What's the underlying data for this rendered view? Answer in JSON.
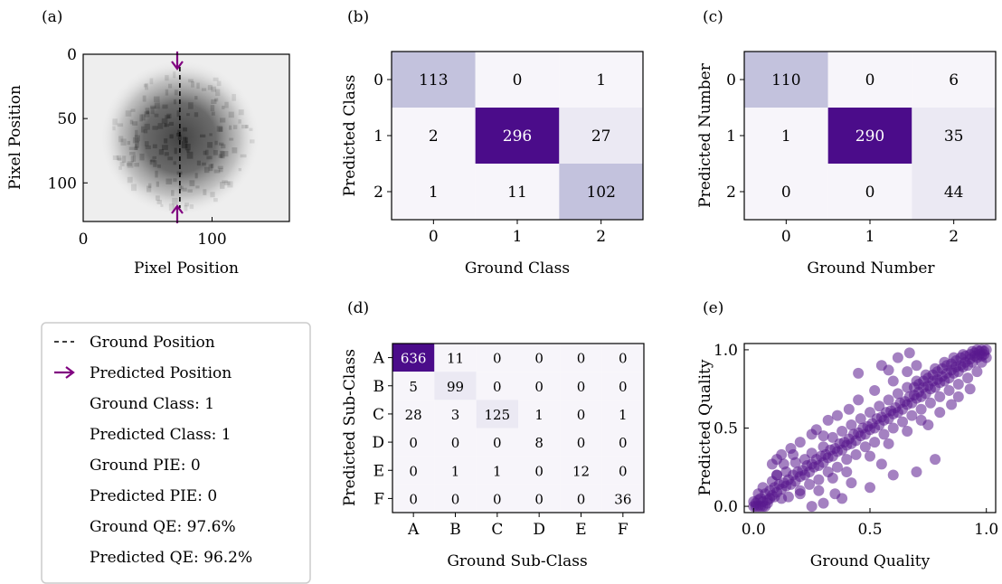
{
  "figure": {
    "panel_labels": [
      "(a)",
      "(b)",
      "(c)",
      "(d)",
      "(e)"
    ]
  },
  "colors": {
    "purple_dark": "#4b0c8a",
    "purple_light": "#c3c2dd",
    "purple_pale": "#ebe9f3",
    "purple_faint": "#f7f5fa",
    "arrow": "#800080",
    "scatter": "#5a1a8e"
  },
  "legend": {
    "ground_position": "Ground Position",
    "predicted_position": "Predicted Position",
    "ground_class": "Ground Class: 1",
    "predicted_class": "Predicted Class: 1",
    "ground_pie": "Ground PIE: 0",
    "predicted_pie": "Predicted PIE: 0",
    "ground_qe": "Ground QE: 97.6%",
    "predicted_qe": "Predicted QE: 96.2%"
  },
  "chart_data": [
    {
      "panel": "(a)",
      "type": "heatmap",
      "xlabel": "Pixel Position",
      "ylabel": "Pixel Position",
      "xticks": [
        "0",
        "100"
      ],
      "yticks": [
        "0",
        "50",
        "100"
      ],
      "xlim": [
        0,
        160
      ],
      "ylim": [
        130,
        0
      ],
      "ground_position_x": 75,
      "predicted_position_x": 75
    },
    {
      "panel": "(b)",
      "type": "heatmap",
      "xlabel": "Ground Class",
      "ylabel": "Predicted Class",
      "x_categories": [
        "0",
        "1",
        "2"
      ],
      "y_categories": [
        "0",
        "1",
        "2"
      ],
      "values": [
        [
          113,
          0,
          1
        ],
        [
          2,
          296,
          27
        ],
        [
          1,
          11,
          102
        ]
      ]
    },
    {
      "panel": "(c)",
      "type": "heatmap",
      "xlabel": "Ground Number",
      "ylabel": "Predicted Number",
      "x_categories": [
        "0",
        "1",
        "2"
      ],
      "y_categories": [
        "0",
        "1",
        "2"
      ],
      "values": [
        [
          110,
          0,
          6
        ],
        [
          1,
          290,
          35
        ],
        [
          0,
          0,
          44
        ]
      ]
    },
    {
      "panel": "(d)",
      "type": "heatmap",
      "xlabel": "Ground Sub-Class",
      "ylabel": "Predicted Sub-Class",
      "x_categories": [
        "A",
        "B",
        "C",
        "D",
        "E",
        "F"
      ],
      "y_categories": [
        "A",
        "B",
        "C",
        "D",
        "E",
        "F"
      ],
      "values": [
        [
          636,
          11,
          0,
          0,
          0,
          0
        ],
        [
          5,
          99,
          0,
          0,
          0,
          0
        ],
        [
          28,
          3,
          125,
          1,
          0,
          1
        ],
        [
          0,
          0,
          0,
          8,
          0,
          0
        ],
        [
          0,
          1,
          1,
          0,
          12,
          0
        ],
        [
          0,
          0,
          0,
          0,
          0,
          36
        ]
      ]
    },
    {
      "panel": "(e)",
      "type": "scatter",
      "xlabel": "Ground Quality",
      "ylabel": "Predicted Quality",
      "xticks": [
        "0.0",
        "0.5",
        "1.0"
      ],
      "yticks": [
        "0.0",
        "0.5",
        "1.0"
      ],
      "xlim": [
        -0.04,
        1.04
      ],
      "ylim": [
        -0.04,
        1.04
      ],
      "points": [
        [
          0.0,
          0.0
        ],
        [
          0.01,
          0.02
        ],
        [
          0.02,
          0.0
        ],
        [
          0.03,
          0.05
        ],
        [
          0.04,
          0.03
        ],
        [
          0.05,
          0.08
        ],
        [
          0.06,
          0.04
        ],
        [
          0.07,
          0.1
        ],
        [
          0.08,
          0.07
        ],
        [
          0.09,
          0.12
        ],
        [
          0.1,
          0.09
        ],
        [
          0.11,
          0.14
        ],
        [
          0.12,
          0.11
        ],
        [
          0.13,
          0.15
        ],
        [
          0.14,
          0.13
        ],
        [
          0.15,
          0.17
        ],
        [
          0.16,
          0.14
        ],
        [
          0.17,
          0.2
        ],
        [
          0.18,
          0.16
        ],
        [
          0.19,
          0.22
        ],
        [
          0.2,
          0.19
        ],
        [
          0.21,
          0.23
        ],
        [
          0.22,
          0.2
        ],
        [
          0.23,
          0.26
        ],
        [
          0.24,
          0.22
        ],
        [
          0.25,
          0.27
        ],
        [
          0.26,
          0.25
        ],
        [
          0.27,
          0.3
        ],
        [
          0.28,
          0.26
        ],
        [
          0.29,
          0.32
        ],
        [
          0.3,
          0.28
        ],
        [
          0.31,
          0.33
        ],
        [
          0.32,
          0.31
        ],
        [
          0.33,
          0.36
        ],
        [
          0.34,
          0.32
        ],
        [
          0.35,
          0.37
        ],
        [
          0.36,
          0.35
        ],
        [
          0.37,
          0.4
        ],
        [
          0.38,
          0.36
        ],
        [
          0.39,
          0.41
        ],
        [
          0.4,
          0.39
        ],
        [
          0.41,
          0.43
        ],
        [
          0.42,
          0.4
        ],
        [
          0.43,
          0.46
        ],
        [
          0.44,
          0.42
        ],
        [
          0.45,
          0.47
        ],
        [
          0.46,
          0.45
        ],
        [
          0.47,
          0.5
        ],
        [
          0.48,
          0.46
        ],
        [
          0.49,
          0.51
        ],
        [
          0.5,
          0.49
        ],
        [
          0.51,
          0.53
        ],
        [
          0.52,
          0.5
        ],
        [
          0.53,
          0.56
        ],
        [
          0.54,
          0.52
        ],
        [
          0.55,
          0.57
        ],
        [
          0.56,
          0.55
        ],
        [
          0.57,
          0.6
        ],
        [
          0.58,
          0.56
        ],
        [
          0.59,
          0.61
        ],
        [
          0.6,
          0.59
        ],
        [
          0.61,
          0.63
        ],
        [
          0.62,
          0.6
        ],
        [
          0.63,
          0.66
        ],
        [
          0.64,
          0.62
        ],
        [
          0.65,
          0.67
        ],
        [
          0.66,
          0.65
        ],
        [
          0.67,
          0.7
        ],
        [
          0.68,
          0.66
        ],
        [
          0.69,
          0.71
        ],
        [
          0.7,
          0.69
        ],
        [
          0.71,
          0.73
        ],
        [
          0.72,
          0.7
        ],
        [
          0.73,
          0.76
        ],
        [
          0.74,
          0.72
        ],
        [
          0.75,
          0.77
        ],
        [
          0.76,
          0.75
        ],
        [
          0.77,
          0.8
        ],
        [
          0.78,
          0.76
        ],
        [
          0.79,
          0.81
        ],
        [
          0.8,
          0.79
        ],
        [
          0.81,
          0.83
        ],
        [
          0.82,
          0.8
        ],
        [
          0.83,
          0.85
        ],
        [
          0.84,
          0.82
        ],
        [
          0.85,
          0.87
        ],
        [
          0.86,
          0.85
        ],
        [
          0.87,
          0.89
        ],
        [
          0.88,
          0.86
        ],
        [
          0.89,
          0.9
        ],
        [
          0.9,
          0.89
        ],
        [
          0.91,
          0.92
        ],
        [
          0.92,
          0.9
        ],
        [
          0.93,
          0.94
        ],
        [
          0.94,
          0.92
        ],
        [
          0.95,
          0.96
        ],
        [
          0.96,
          0.95
        ],
        [
          0.97,
          0.97
        ],
        [
          0.98,
          0.96
        ],
        [
          0.99,
          0.99
        ],
        [
          1.0,
          1.0
        ],
        [
          0.99,
          0.97
        ],
        [
          0.98,
          1.0
        ],
        [
          0.97,
          0.99
        ],
        [
          0.02,
          0.08
        ],
        [
          0.04,
          0.12
        ],
        [
          0.05,
          0.0
        ],
        [
          0.08,
          0.16
        ],
        [
          0.1,
          0.2
        ],
        [
          0.12,
          0.05
        ],
        [
          0.14,
          0.22
        ],
        [
          0.15,
          0.06
        ],
        [
          0.18,
          0.28
        ],
        [
          0.2,
          0.1
        ],
        [
          0.22,
          0.3
        ],
        [
          0.24,
          0.14
        ],
        [
          0.25,
          0.34
        ],
        [
          0.28,
          0.17
        ],
        [
          0.3,
          0.38
        ],
        [
          0.32,
          0.22
        ],
        [
          0.34,
          0.44
        ],
        [
          0.36,
          0.25
        ],
        [
          0.38,
          0.48
        ],
        [
          0.4,
          0.3
        ],
        [
          0.42,
          0.52
        ],
        [
          0.44,
          0.33
        ],
        [
          0.46,
          0.56
        ],
        [
          0.48,
          0.38
        ],
        [
          0.5,
          0.6
        ],
        [
          0.52,
          0.41
        ],
        [
          0.54,
          0.64
        ],
        [
          0.56,
          0.46
        ],
        [
          0.58,
          0.68
        ],
        [
          0.6,
          0.5
        ],
        [
          0.62,
          0.72
        ],
        [
          0.64,
          0.54
        ],
        [
          0.66,
          0.76
        ],
        [
          0.68,
          0.58
        ],
        [
          0.7,
          0.8
        ],
        [
          0.72,
          0.62
        ],
        [
          0.74,
          0.84
        ],
        [
          0.76,
          0.66
        ],
        [
          0.78,
          0.88
        ],
        [
          0.8,
          0.7
        ],
        [
          0.82,
          0.92
        ],
        [
          0.84,
          0.74
        ],
        [
          0.86,
          0.95
        ],
        [
          0.88,
          0.78
        ],
        [
          0.9,
          0.97
        ],
        [
          0.92,
          0.82
        ],
        [
          0.94,
          0.99
        ],
        [
          0.96,
          0.86
        ],
        [
          0.08,
          0.27
        ],
        [
          0.1,
          0.3
        ],
        [
          0.12,
          0.33
        ],
        [
          0.16,
          0.37
        ],
        [
          0.2,
          0.41
        ],
        [
          0.25,
          0.46
        ],
        [
          0.27,
          0.49
        ],
        [
          0.32,
          0.55
        ],
        [
          0.36,
          0.58
        ],
        [
          0.41,
          0.62
        ],
        [
          0.45,
          0.68
        ],
        [
          0.52,
          0.74
        ],
        [
          0.6,
          0.8
        ],
        [
          0.66,
          0.86
        ],
        [
          0.7,
          0.9
        ],
        [
          0.45,
          0.85
        ],
        [
          0.55,
          0.9
        ],
        [
          0.62,
          0.95
        ],
        [
          0.58,
          0.87
        ],
        [
          0.67,
          0.98
        ],
        [
          0.1,
          0.2
        ],
        [
          0.13,
          0.27
        ],
        [
          0.17,
          0.33
        ],
        [
          0.3,
          0.45
        ],
        [
          0.2,
          0.08
        ],
        [
          0.28,
          0.1
        ],
        [
          0.34,
          0.18
        ],
        [
          0.4,
          0.22
        ],
        [
          0.5,
          0.32
        ],
        [
          0.58,
          0.4
        ],
        [
          0.66,
          0.48
        ],
        [
          0.72,
          0.55
        ],
        [
          0.75,
          0.52
        ],
        [
          0.8,
          0.6
        ],
        [
          0.85,
          0.65
        ],
        [
          0.88,
          0.7
        ],
        [
          0.93,
          0.75
        ],
        [
          0.6,
          0.2
        ],
        [
          0.7,
          0.22
        ],
        [
          0.78,
          0.3
        ],
        [
          0.55,
          0.27
        ],
        [
          0.5,
          0.12
        ],
        [
          0.42,
          0.15
        ],
        [
          0.35,
          0.08
        ],
        [
          0.25,
          0.0
        ],
        [
          0.3,
          0.02
        ],
        [
          0.38,
          0.05
        ],
        [
          0.98,
          0.92
        ],
        [
          1.0,
          0.95
        ],
        [
          0.96,
          1.0
        ],
        [
          0.95,
          0.98
        ],
        [
          0.93,
          0.97
        ],
        [
          0.91,
          0.96
        ],
        [
          0.89,
          0.95
        ],
        [
          0.87,
          0.93
        ],
        [
          0.85,
          0.91
        ],
        [
          0.83,
          0.9
        ],
        [
          0.81,
          0.88
        ],
        [
          0.79,
          0.86
        ],
        [
          0.77,
          0.84
        ],
        [
          0.75,
          0.82
        ],
        [
          0.73,
          0.8
        ],
        [
          0.71,
          0.78
        ],
        [
          0.69,
          0.76
        ],
        [
          0.03,
          0.0
        ],
        [
          0.06,
          0.02
        ],
        [
          0.01,
          0.0
        ],
        [
          0.0,
          0.03
        ],
        [
          0.02,
          0.04
        ],
        [
          0.04,
          0.0
        ],
        [
          0.07,
          0.05
        ],
        [
          0.09,
          0.06
        ]
      ]
    }
  ]
}
